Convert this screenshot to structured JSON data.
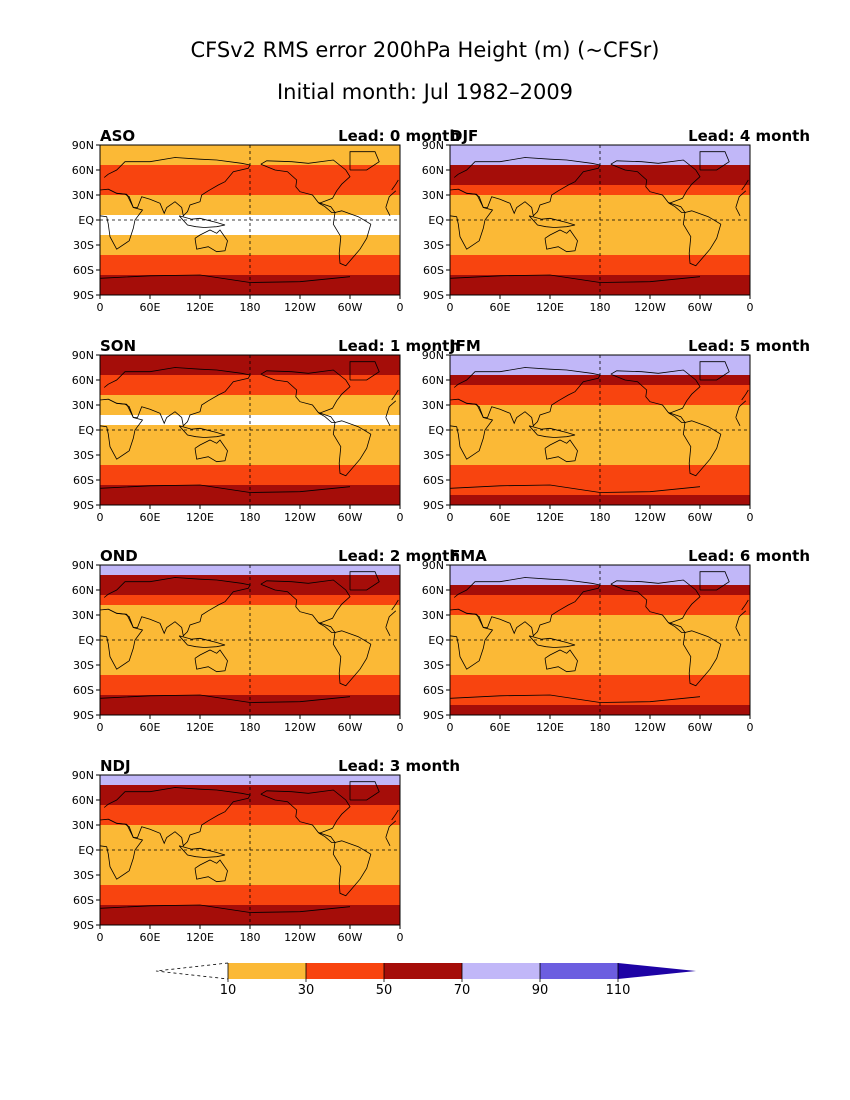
{
  "title": {
    "line1": "CFSv2 RMS error 200hPa Height (m) (~CFSr)",
    "line2": "Initial month: Jul 1982–2009"
  },
  "axis": {
    "lat_ticks": [
      "90N",
      "60N",
      "30N",
      "EQ",
      "30S",
      "60S",
      "90S"
    ],
    "lon_ticks": [
      "0",
      "60E",
      "120E",
      "180",
      "120W",
      "60W",
      "0"
    ]
  },
  "panels": [
    {
      "season": "ASO",
      "lead": "Lead: 0 month",
      "bands": [
        "c1",
        "c1",
        "c2",
        "c2",
        "c2",
        "c1",
        "c1",
        "c0",
        "c0",
        "c1",
        "c1",
        "c2",
        "c2",
        "c3",
        "c3"
      ]
    },
    {
      "season": "SON",
      "lead": "Lead: 1 month",
      "bands": [
        "c3",
        "c3",
        "c2",
        "c2",
        "c1",
        "c1",
        "c0",
        "c1",
        "c1",
        "c1",
        "c1",
        "c2",
        "c2",
        "c3",
        "c3"
      ]
    },
    {
      "season": "OND",
      "lead": "Lead: 2 month",
      "bands": [
        "c4",
        "c3",
        "c3",
        "c2",
        "c1",
        "c1",
        "c1",
        "c1",
        "c1",
        "c1",
        "c1",
        "c2",
        "c2",
        "c3",
        "c3"
      ]
    },
    {
      "season": "NDJ",
      "lead": "Lead: 3 month",
      "bands": [
        "c4",
        "c3",
        "c3",
        "c2",
        "c2",
        "c1",
        "c1",
        "c1",
        "c1",
        "c1",
        "c1",
        "c2",
        "c2",
        "c3",
        "c3"
      ]
    },
    {
      "season": "DJF",
      "lead": "Lead: 4 month",
      "bands": [
        "c4",
        "c4",
        "c3",
        "c3",
        "c2",
        "c1",
        "c1",
        "c1",
        "c1",
        "c1",
        "c1",
        "c2",
        "c2",
        "c3",
        "c3"
      ]
    },
    {
      "season": "JFM",
      "lead": "Lead: 5 month",
      "bands": [
        "c4",
        "c4",
        "c3",
        "c2",
        "c2",
        "c1",
        "c1",
        "c1",
        "c1",
        "c1",
        "c1",
        "c2",
        "c2",
        "c2",
        "c3"
      ]
    },
    {
      "season": "FMA",
      "lead": "Lead: 6 month",
      "bands": [
        "c4",
        "c4",
        "c3",
        "c2",
        "c2",
        "c1",
        "c1",
        "c1",
        "c1",
        "c1",
        "c1",
        "c2",
        "c2",
        "c2",
        "c3"
      ]
    }
  ],
  "colorbar": {
    "labels": [
      "10",
      "30",
      "50",
      "70",
      "90",
      "110"
    ],
    "colors": {
      "c0": "#ffffff",
      "c1": "#fbb936",
      "c2": "#f8440f",
      "c3": "#a50d09",
      "c4": "#c1b7f8",
      "c5": "#6c5ee0",
      "c6": "#1e03a5"
    }
  }
}
